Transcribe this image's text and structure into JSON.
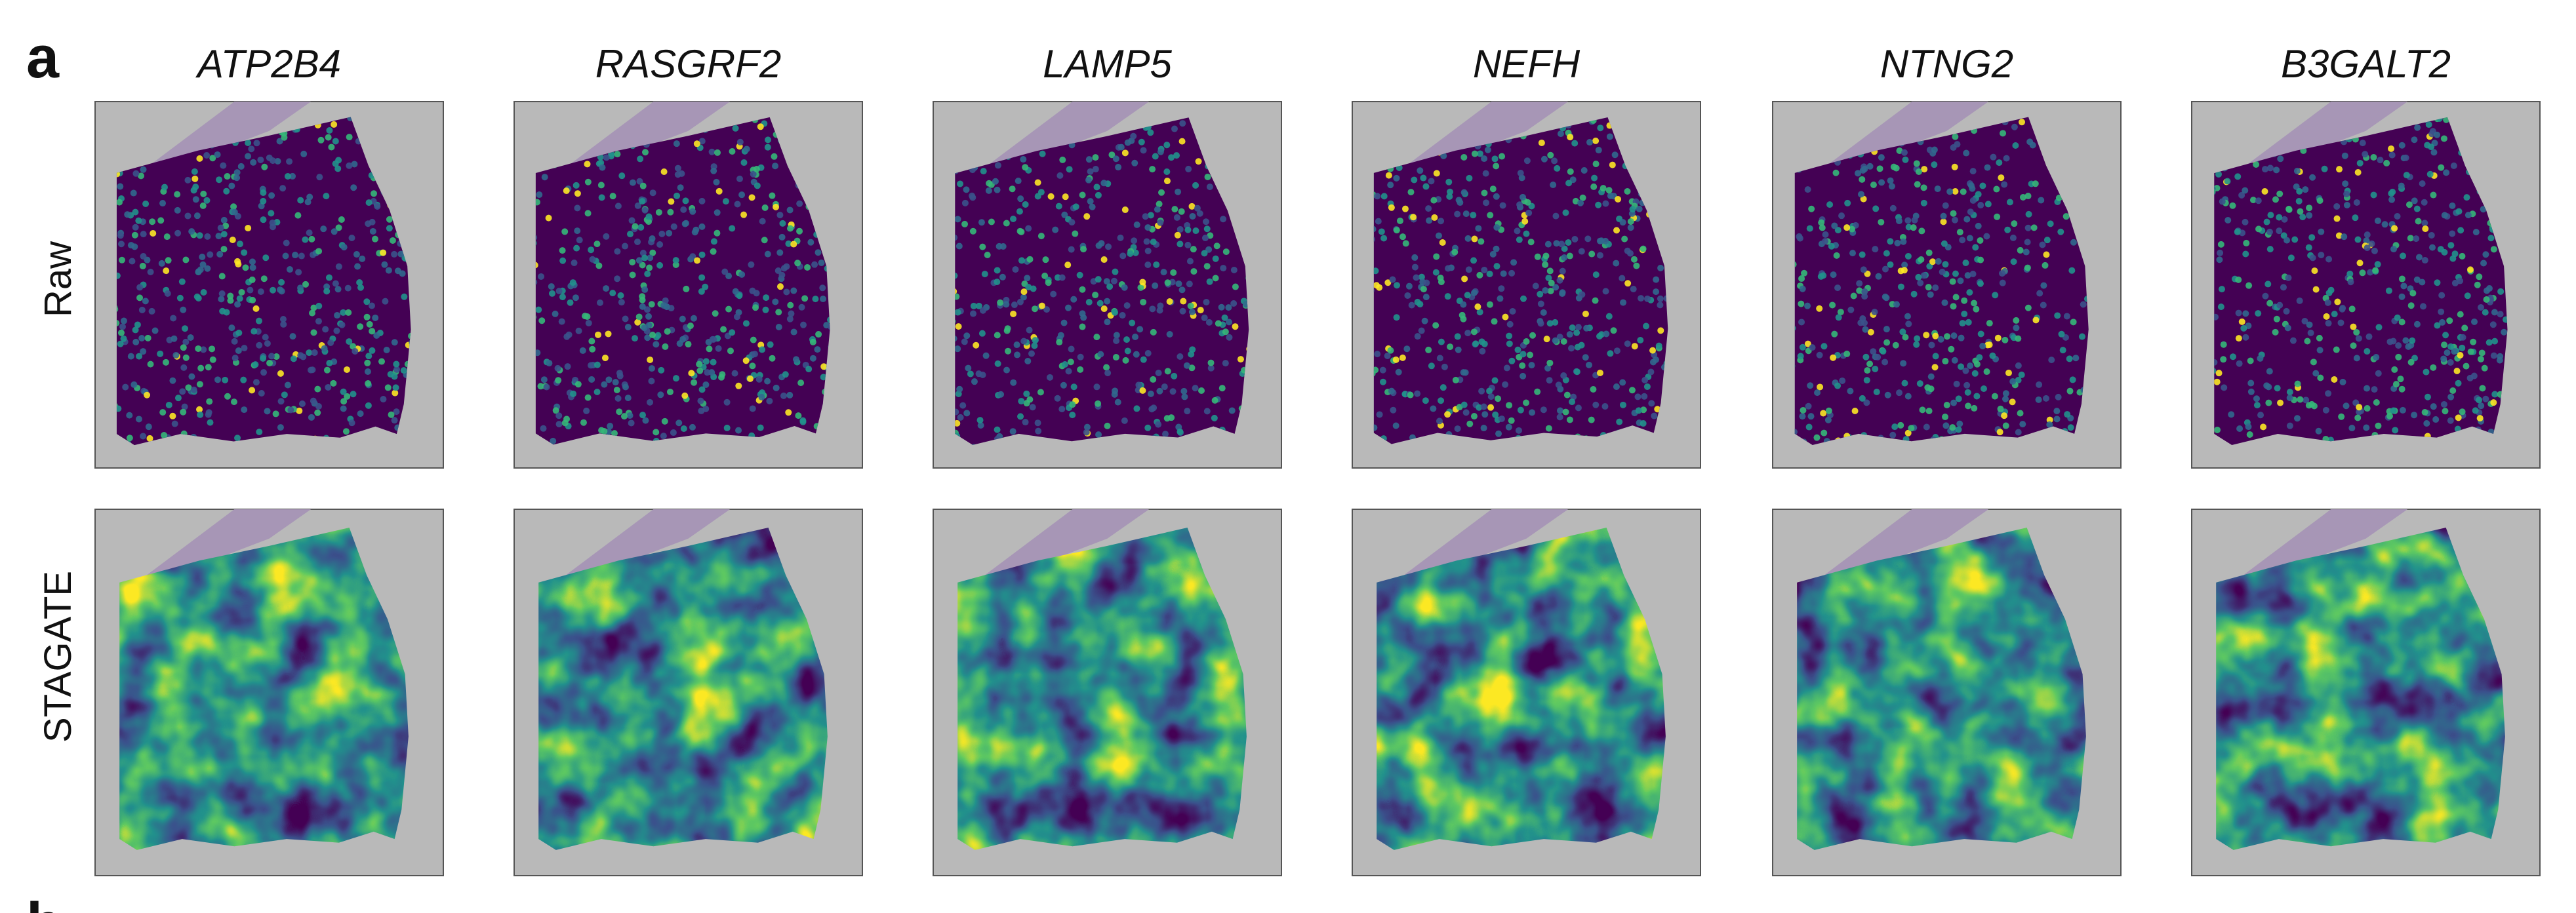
{
  "panel_label": "a",
  "genes": [
    "ATP2B4",
    "RASGRF2",
    "LAMP5",
    "NEFH",
    "NTNG2",
    "B3GALT2"
  ],
  "rows": [
    "Raw",
    "STAGATE"
  ],
  "next_panel_label": "b"
}
